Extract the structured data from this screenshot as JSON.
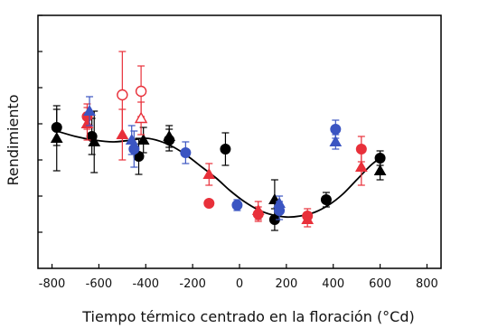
{
  "chart_data": {
    "type": "scatter",
    "xlabel": "Tiempo térmico centrado en la floración (°Cd)",
    "ylabel": "Rendimiento",
    "xlim": [
      -860,
      860
    ],
    "ylim": [
      0,
      7
    ],
    "x_ticks": [
      -800,
      -600,
      -400,
      -200,
      0,
      200,
      400,
      600,
      800
    ],
    "x_tick_labels": [
      "-800",
      "-600",
      "-400",
      "-200",
      "0",
      "200",
      "400",
      "600",
      "800"
    ],
    "y_ticks": [
      1,
      2,
      3,
      4,
      5,
      6,
      7
    ],
    "y_tick_labels_visible": false,
    "grid": false,
    "legend": "none",
    "colors": {
      "black": "#000000",
      "red": "#e8303a",
      "blue": "#3b55c2",
      "curve": "#000000",
      "frame": "#000000"
    },
    "fit_curve": {
      "color": "#000000",
      "x": [
        -780,
        -700,
        -620,
        -540,
        -460,
        -400,
        -340,
        -280,
        -220,
        -160,
        -100,
        -40,
        20,
        80,
        140,
        200,
        260,
        320,
        380,
        440,
        500,
        560,
        600
      ],
      "y": [
        3.8,
        3.65,
        3.55,
        3.5,
        3.55,
        3.6,
        3.52,
        3.35,
        3.1,
        2.8,
        2.5,
        2.15,
        1.85,
        1.62,
        1.48,
        1.42,
        1.45,
        1.55,
        1.75,
        2.05,
        2.45,
        2.85,
        3.05
      ]
    },
    "series": [
      {
        "color": "#000000",
        "marker": "circle",
        "points": [
          {
            "x": -780,
            "y": 3.9,
            "err": 0.5
          },
          {
            "x": -630,
            "y": 3.65,
            "err": 0.5
          },
          {
            "x": -430,
            "y": 3.1,
            "err": 0.5
          },
          {
            "x": -300,
            "y": 3.55,
            "err": 0.3
          },
          {
            "x": -60,
            "y": 3.3,
            "err": 0.45
          },
          {
            "x": 150,
            "y": 1.35,
            "err": 0.3
          },
          {
            "x": 370,
            "y": 1.9,
            "err": 0.2
          },
          {
            "x": 600,
            "y": 3.05,
            "err": 0.2
          }
        ]
      },
      {
        "color": "#000000",
        "marker": "triangle",
        "points": [
          {
            "x": -780,
            "y": 3.6,
            "err": 0.9
          },
          {
            "x": -620,
            "y": 3.5,
            "err": 0.85
          },
          {
            "x": -410,
            "y": 3.55,
            "err": 0.35
          },
          {
            "x": -300,
            "y": 3.65,
            "err": 0.3
          },
          {
            "x": 150,
            "y": 1.9,
            "err": 0.55
          },
          {
            "x": 600,
            "y": 2.7,
            "err": 0.25
          }
        ]
      },
      {
        "color": "#e8303a",
        "marker": "circle",
        "points": [
          {
            "x": -650,
            "y": 4.2,
            "err": 0.35
          },
          {
            "x": -130,
            "y": 1.8,
            "err": 0.08
          },
          {
            "x": 80,
            "y": 1.5,
            "err": 0.2
          },
          {
            "x": 290,
            "y": 1.45,
            "err": 0.2
          },
          {
            "x": 520,
            "y": 3.3,
            "err": 0.35
          }
        ]
      },
      {
        "color": "#e8303a",
        "marker": "triangle",
        "points": [
          {
            "x": -650,
            "y": 4.0,
            "err": 0.45
          },
          {
            "x": -500,
            "y": 3.7,
            "err": 0.7
          },
          {
            "x": -130,
            "y": 2.6,
            "err": 0.3
          },
          {
            "x": 80,
            "y": 1.6,
            "err": 0.25
          },
          {
            "x": 290,
            "y": 1.35,
            "err": 0.2
          },
          {
            "x": 520,
            "y": 2.8,
            "err": 0.5
          }
        ]
      },
      {
        "color": "#e8303a",
        "marker": "circle-open",
        "points": [
          {
            "x": -500,
            "y": 4.8,
            "err": 1.2
          },
          {
            "x": -420,
            "y": 4.9,
            "err": 0.7
          }
        ]
      },
      {
        "color": "#e8303a",
        "marker": "triangle-open",
        "points": [
          {
            "x": -420,
            "y": 4.15,
            "err": 0.45
          }
        ]
      },
      {
        "color": "#3b55c2",
        "marker": "circle",
        "points": [
          {
            "x": -450,
            "y": 3.3,
            "err": 0.5
          },
          {
            "x": -230,
            "y": 3.2,
            "err": 0.3
          },
          {
            "x": -10,
            "y": 1.75,
            "err": 0.15
          },
          {
            "x": 170,
            "y": 1.6,
            "err": 0.25
          },
          {
            "x": 410,
            "y": 3.85,
            "err": 0.25
          }
        ]
      },
      {
        "color": "#3b55c2",
        "marker": "triangle",
        "points": [
          {
            "x": -640,
            "y": 4.35,
            "err": 0.4
          },
          {
            "x": -460,
            "y": 3.55,
            "err": 0.4
          },
          {
            "x": 170,
            "y": 1.8,
            "err": 0.2
          },
          {
            "x": 410,
            "y": 3.5,
            "err": 0.2
          }
        ]
      }
    ]
  }
}
